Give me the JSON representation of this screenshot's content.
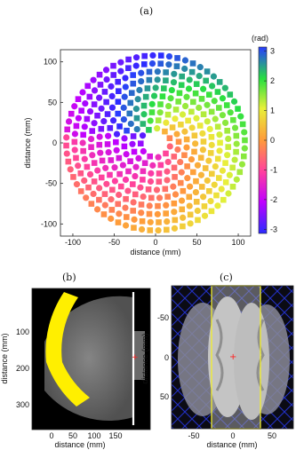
{
  "figure": {
    "panel_a_label": "(a)",
    "panel_b_label": "(b)",
    "panel_c_label": "(c)",
    "colorbar_unit": "(rad)"
  },
  "chart_data": [
    {
      "type": "scatter",
      "panel": "a",
      "xlabel": "distance (mm)",
      "ylabel": "distance (mm)",
      "xlim": [
        -115,
        115
      ],
      "ylim": [
        -115,
        115
      ],
      "xticks": [
        "-100",
        "-50",
        "0",
        "50",
        "100"
      ],
      "yticks": [
        "100",
        "50",
        "0",
        "-50",
        "-100"
      ],
      "colorbar": {
        "label": "(rad)",
        "range": [
          -3.14,
          3.14
        ],
        "ticks": [
          "3",
          "2",
          "1",
          "0",
          "-1",
          "-2",
          "-3"
        ]
      },
      "radius_mm": 108,
      "marker_shapes": [
        "circle",
        "square"
      ]
    },
    {
      "type": "heatmap",
      "panel": "b",
      "xlabel": "distance (mm)",
      "ylabel": "distance (mm)",
      "xticks": [
        "0",
        "50",
        "100",
        "150"
      ],
      "yticks": [
        "100",
        "200",
        "300"
      ]
    },
    {
      "type": "heatmap",
      "panel": "c",
      "xlabel": "distance (mm)",
      "ylabel": "distance (mm)",
      "xticks": [
        "-50",
        "0",
        "50"
      ],
      "yticks": [
        "-50",
        "0",
        "50"
      ]
    }
  ]
}
